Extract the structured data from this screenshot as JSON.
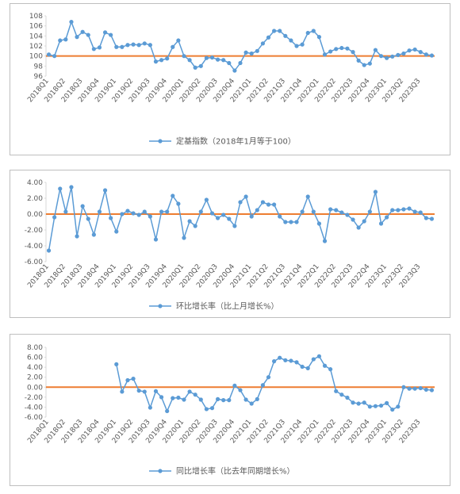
{
  "chart_data": [
    {
      "type": "line",
      "categories": [
        "2018Q1",
        null,
        null,
        "2018Q2",
        null,
        null,
        "2018Q3",
        null,
        null,
        "2018Q4",
        null,
        null,
        "2019Q1",
        null,
        null,
        "2019Q2",
        null,
        null,
        "2019Q3",
        null,
        null,
        "2019Q4",
        null,
        null,
        "2020Q1",
        null,
        null,
        "2020Q2",
        null,
        null,
        "2020Q3",
        null,
        null,
        "2020Q4",
        null,
        null,
        "2021Q1",
        null,
        null,
        "2021Q2",
        null,
        null,
        "2021Q3",
        null,
        null,
        "2021Q4",
        null,
        null,
        "2022Q1",
        null,
        null,
        "2022Q2",
        null,
        null,
        "2022Q3",
        null,
        null,
        "2022Q4",
        null,
        null,
        "2023Q1",
        null,
        null,
        "2023Q2",
        null,
        null,
        "2023Q3",
        null,
        null
      ],
      "series": [
        {
          "name": "定基指数（2018年1月等于100）",
          "color": "#5b9bd5",
          "values": [
            100.3,
            100.0,
            103.1,
            103.3,
            106.8,
            103.8,
            104.8,
            104.2,
            101.4,
            101.7,
            104.7,
            104.2,
            101.8,
            101.8,
            102.2,
            102.3,
            102.2,
            102.5,
            102.2,
            98.9,
            99.2,
            99.5,
            101.8,
            103.1,
            100.0,
            99.2,
            97.7,
            98.0,
            99.6,
            99.7,
            99.3,
            99.2,
            98.6,
            97.1,
            98.6,
            100.7,
            100.5,
            101.0,
            102.5,
            103.7,
            105.0,
            105.0,
            104.0,
            103.1,
            102.0,
            102.3,
            104.6,
            105.0,
            103.8,
            100.3,
            100.9,
            101.4,
            101.6,
            101.5,
            100.8,
            99.1,
            98.2,
            98.5,
            101.2,
            100.0,
            99.6,
            99.9,
            100.2,
            100.5,
            101.1,
            101.3,
            100.8,
            100.3,
            100.1
          ]
        }
      ],
      "ylim": [
        96,
        108
      ],
      "yticks": [
        96,
        98,
        100,
        102,
        104,
        106,
        108
      ],
      "reference_line": {
        "value": 100,
        "color": "#ed7d31"
      }
    },
    {
      "type": "line",
      "categories": [
        "2018Q1",
        null,
        null,
        "2018Q2",
        null,
        null,
        "2018Q3",
        null,
        null,
        "2018Q4",
        null,
        null,
        "2019Q1",
        null,
        null,
        "2019Q2",
        null,
        null,
        "2019Q3",
        null,
        null,
        "2019Q4",
        null,
        null,
        "2020Q1",
        null,
        null,
        "2020Q2",
        null,
        null,
        "2020Q3",
        null,
        null,
        "2020Q4",
        null,
        null,
        "2021Q1",
        null,
        null,
        "2021Q2",
        null,
        null,
        "2021Q3",
        null,
        null,
        "2021Q4",
        null,
        null,
        "2022Q1",
        null,
        null,
        "2022Q2",
        null,
        null,
        "2022Q3",
        null,
        null,
        "2022Q4",
        null,
        null,
        "2023Q1",
        null,
        null,
        "2023Q2",
        null,
        null,
        "2023Q3",
        null,
        null
      ],
      "series": [
        {
          "name": "环比增长率（比上月增长%）",
          "color": "#5b9bd5",
          "values": [
            -4.6,
            -0.4,
            3.2,
            0.3,
            3.4,
            -2.8,
            1.0,
            -0.6,
            -2.6,
            0.3,
            3.0,
            -0.5,
            -2.2,
            0.0,
            0.4,
            0.1,
            -0.1,
            0.3,
            -0.3,
            -3.2,
            0.3,
            0.3,
            2.3,
            1.3,
            -3.0,
            -0.9,
            -1.5,
            0.3,
            1.8,
            0.1,
            -0.5,
            -0.1,
            -0.6,
            -1.5,
            1.5,
            2.2,
            -0.3,
            0.5,
            1.5,
            1.2,
            1.2,
            -0.3,
            -1.0,
            -1.0,
            -1.0,
            0.3,
            2.2,
            0.3,
            -1.2,
            -3.4,
            0.6,
            0.5,
            0.2,
            -0.1,
            -0.7,
            -1.7,
            -0.9,
            0.3,
            2.8,
            -1.2,
            -0.4,
            0.5,
            0.5,
            0.6,
            0.7,
            0.3,
            0.2,
            -0.5,
            -0.6
          ]
        }
      ],
      "ylim": [
        -6,
        4
      ],
      "yticks": [
        {
          "value": -6,
          "label": "-6.00"
        },
        {
          "value": -4,
          "label": "-4.00"
        },
        {
          "value": -2,
          "label": "-2.00"
        },
        {
          "value": 0,
          "label": "0.00"
        },
        {
          "value": 2,
          "label": "2.00"
        },
        {
          "value": 4,
          "label": "4.00"
        }
      ],
      "reference_line": {
        "value": 0,
        "color": "#ed7d31"
      }
    },
    {
      "type": "line",
      "categories": [
        "2018Q1",
        null,
        null,
        "2018Q2",
        null,
        null,
        "2018Q3",
        null,
        null,
        "2018Q4",
        null,
        null,
        "2019Q1",
        null,
        null,
        "2019Q2",
        null,
        null,
        "2019Q3",
        null,
        null,
        "2019Q4",
        null,
        null,
        "2020Q1",
        null,
        null,
        "2020Q2",
        null,
        null,
        "2020Q3",
        null,
        null,
        "2020Q4",
        null,
        null,
        "2021Q1",
        null,
        null,
        "2021Q2",
        null,
        null,
        "2021Q3",
        null,
        null,
        "2021Q4",
        null,
        null,
        "2022Q1",
        null,
        null,
        "2022Q2",
        null,
        null,
        "2022Q3",
        null,
        null,
        "2022Q4",
        null,
        null,
        "2023Q1",
        null,
        null,
        "2023Q2",
        null,
        null,
        "2023Q3",
        null,
        null
      ],
      "series": [
        {
          "name": "同比增长率（比去年同期增长%）",
          "color": "#5b9bd5",
          "values": [
            null,
            null,
            null,
            null,
            null,
            null,
            null,
            null,
            null,
            null,
            null,
            null,
            4.6,
            -0.9,
            1.4,
            1.7,
            -0.7,
            -0.9,
            -4.1,
            -0.8,
            -2.0,
            -4.8,
            -2.2,
            -2.1,
            -2.5,
            -0.9,
            -1.5,
            -2.5,
            -4.4,
            -4.2,
            -2.4,
            -2.6,
            -2.6,
            0.3,
            -0.6,
            -2.5,
            -3.3,
            -2.4,
            0.4,
            2.0,
            5.2,
            5.9,
            5.4,
            5.3,
            5.0,
            4.1,
            3.8,
            5.6,
            6.2,
            4.3,
            3.6,
            -0.8,
            -1.5,
            -2.1,
            -3.1,
            -3.3,
            -3.1,
            -3.9,
            -3.8,
            -3.7,
            -3.2,
            -4.5,
            -3.9,
            0.0,
            -0.3,
            -0.3,
            -0.2,
            -0.5,
            -0.6
          ]
        }
      ],
      "ylim": [
        -6,
        8
      ],
      "yticks": [
        {
          "value": -6,
          "label": "-6.00"
        },
        {
          "value": -4,
          "label": "-4.00"
        },
        {
          "value": -2,
          "label": "-2.00"
        },
        {
          "value": 0,
          "label": "0.00"
        },
        {
          "value": 2,
          "label": "2.00"
        },
        {
          "value": 4,
          "label": "4.00"
        },
        {
          "value": 6,
          "label": "6.00"
        },
        {
          "value": 8,
          "label": "8.00"
        }
      ],
      "reference_line": {
        "value": 0,
        "color": "#ed7d31"
      }
    }
  ]
}
